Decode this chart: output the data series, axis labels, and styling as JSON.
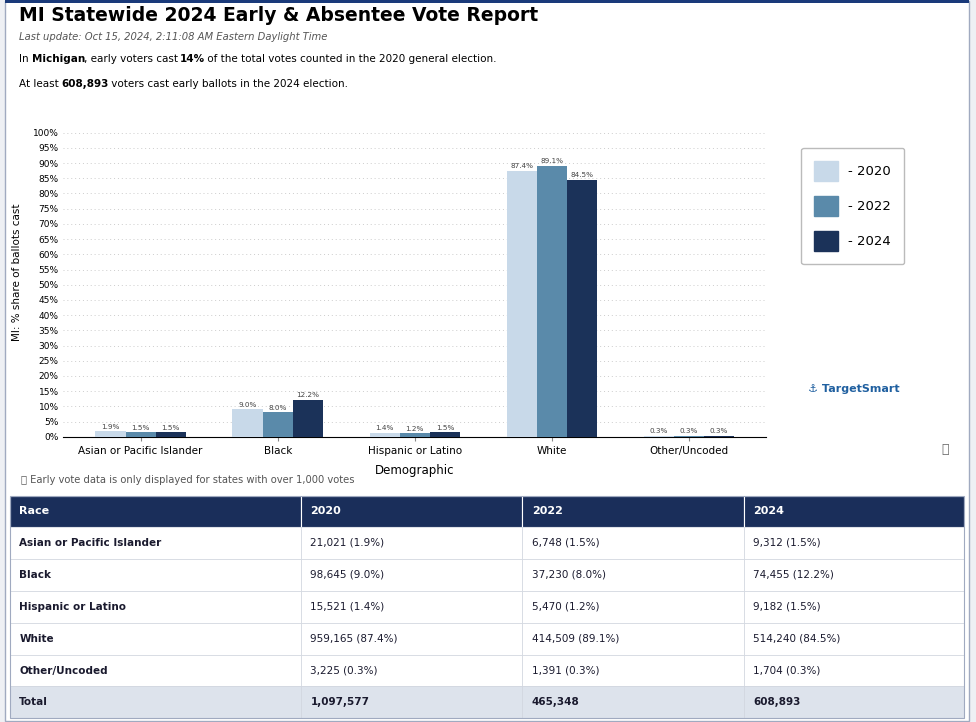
{
  "title": "MI Statewide 2024 Early & Absentee Vote Report",
  "subtitle1": "Last update: Oct 15, 2024, 2:11:08 AM Eastern Daylight Time",
  "subtitle2_parts": [
    [
      "In ",
      false
    ],
    [
      "Michigan",
      true
    ],
    [
      ", early voters cast ",
      false
    ],
    [
      "14%",
      true
    ],
    [
      " of the total votes counted in the 2020 general election.",
      false
    ]
  ],
  "subtitle3_parts": [
    [
      "At least ",
      false
    ],
    [
      "608,893",
      true
    ],
    [
      " voters cast early ballots in the 2024 election.",
      false
    ]
  ],
  "categories": [
    "Asian or Pacific Islander",
    "Black",
    "Hispanic or Latino",
    "White",
    "Other/Uncoded"
  ],
  "xticklabels": [
    "Asian or Pacific Islander",
    "Black",
    "Hispanic or Latino",
    "White",
    "Other/Uncoded"
  ],
  "values_2020": [
    1.9,
    9.0,
    1.4,
    87.4,
    0.3
  ],
  "values_2022": [
    1.5,
    8.0,
    1.2,
    89.1,
    0.3
  ],
  "values_2024": [
    1.5,
    12.2,
    1.5,
    84.5,
    0.3
  ],
  "labels_2020": [
    "1.9%",
    "9.0%",
    "1.4%",
    "87.4%",
    "0.3%"
  ],
  "labels_2022": [
    "1.5%",
    "8.0%",
    "1.2%",
    "89.1%",
    "0.3%"
  ],
  "labels_2024": [
    "1.5%",
    "12.2%",
    "1.5%",
    "84.5%",
    "0.3%"
  ],
  "color_2020": "#c8d9e9",
  "color_2022": "#5a8aaa",
  "color_2024": "#1b3259",
  "ylabel": "MI: % share of ballots cast",
  "xlabel": "Demographic",
  "legend_labels": [
    "- 2020",
    "- 2022",
    "- 2024"
  ],
  "yticks": [
    0,
    5,
    10,
    15,
    20,
    25,
    30,
    35,
    40,
    45,
    50,
    55,
    60,
    65,
    70,
    75,
    80,
    85,
    90,
    95,
    100
  ],
  "ytick_labels": [
    "0%",
    "5%",
    "10%",
    "15%",
    "20%",
    "25%",
    "30%",
    "35%",
    "40%",
    "45%",
    "50%",
    "55%",
    "60%",
    "65%",
    "70%",
    "75%",
    "80%",
    "85%",
    "90%",
    "95%",
    "100%"
  ],
  "table_header": [
    "Race",
    "2020",
    "2022",
    "2024"
  ],
  "table_rows": [
    [
      "Asian or Pacific Islander",
      "21,021 (1.9%)",
      "6,748 (1.5%)",
      "9,312 (1.5%)"
    ],
    [
      "Black",
      "98,645 (9.0%)",
      "37,230 (8.0%)",
      "74,455 (12.2%)"
    ],
    [
      "Hispanic or Latino",
      "15,521 (1.4%)",
      "5,470 (1.2%)",
      "9,182 (1.5%)"
    ],
    [
      "White",
      "959,165 (87.4%)",
      "414,509 (89.1%)",
      "514,240 (84.5%)"
    ],
    [
      "Other/Uncoded",
      "3,225 (0.3%)",
      "1,391 (0.3%)",
      "1,704 (0.3%)"
    ],
    [
      "Total",
      "1,097,577",
      "465,348",
      "608,893"
    ]
  ],
  "header_bg": "#1a2e5a",
  "header_fg": "#ffffff",
  "total_bg": "#dde3ec",
  "note_text": "ⓘ Early vote data is only displayed for states with over 1,000 votes",
  "bg_color": "#eef0f4",
  "chart_bg": "#ffffff",
  "grid_color": "#cccccc",
  "targetsmart_text": "TargetSmart",
  "top_border_color": "#1a3a7a",
  "outer_border_color": "#a0aac0"
}
